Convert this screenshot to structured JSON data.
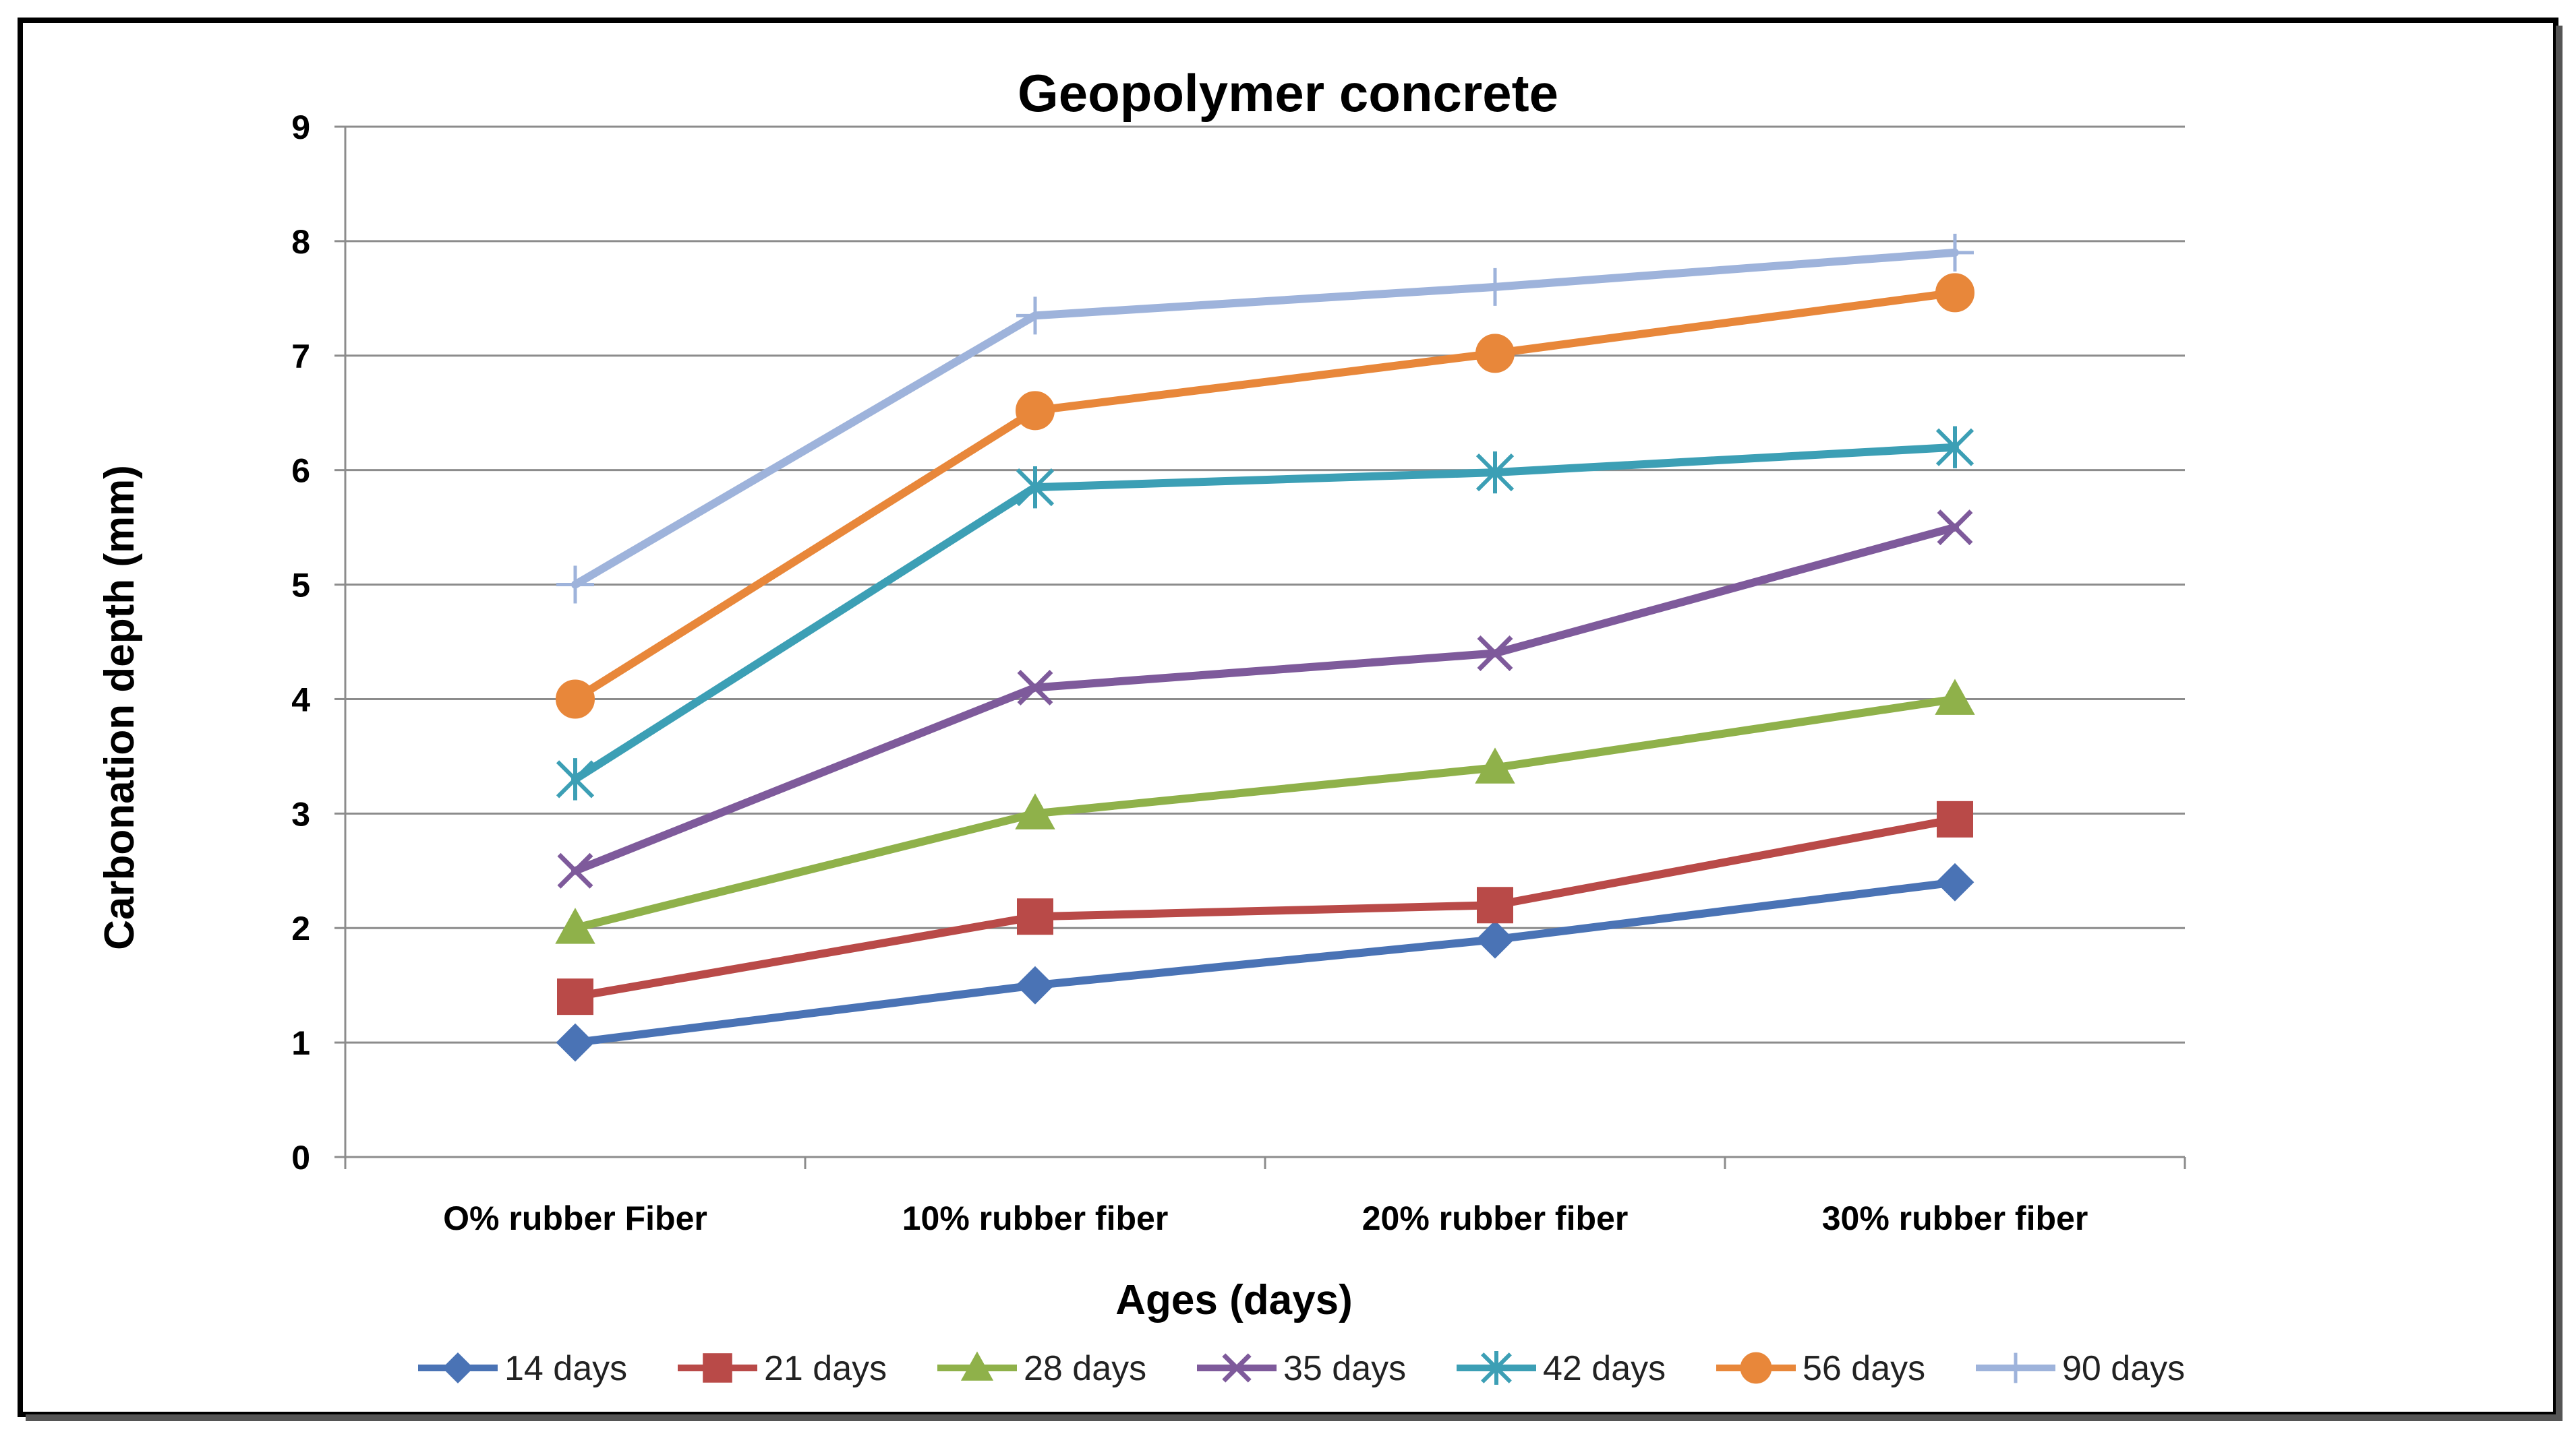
{
  "chart_data": {
    "type": "line",
    "title": "Geopolymer concrete",
    "xlabel": "Ages (days)",
    "ylabel": "Carbonation depth  (mm)",
    "categories": [
      "O% rubber Fiber",
      "10% rubber fiber",
      "20% rubber fiber",
      "30% rubber fiber"
    ],
    "ylim": [
      0,
      9
    ],
    "yticks": [
      "0",
      "1",
      "2",
      "3",
      "4",
      "5",
      "6",
      "7",
      "8",
      "9"
    ],
    "grid": true,
    "legend": "bottom",
    "series": [
      {
        "name": "14 days",
        "values": [
          1.0,
          1.5,
          1.9,
          2.4
        ],
        "color": "#4a73b5",
        "marker": "diamond"
      },
      {
        "name": "21 days",
        "values": [
          1.4,
          2.1,
          2.2,
          2.95
        ],
        "color": "#b94a48",
        "marker": "square"
      },
      {
        "name": "28 days",
        "values": [
          2.0,
          3.0,
          3.4,
          4.0
        ],
        "color": "#8fb14a",
        "marker": "triangle"
      },
      {
        "name": "35 days",
        "values": [
          2.5,
          4.1,
          4.4,
          5.5
        ],
        "color": "#7e5a9b",
        "marker": "x"
      },
      {
        "name": "42 days",
        "values": [
          3.3,
          5.85,
          5.98,
          6.2
        ],
        "color": "#3c9fb5",
        "marker": "star"
      },
      {
        "name": "56 days",
        "values": [
          4.0,
          6.52,
          7.02,
          7.55
        ],
        "color": "#e8873a",
        "marker": "circle"
      },
      {
        "name": "90 days",
        "values": [
          5.0,
          7.35,
          7.6,
          7.9
        ],
        "color": "#9eb3db",
        "marker": "plus"
      }
    ]
  }
}
